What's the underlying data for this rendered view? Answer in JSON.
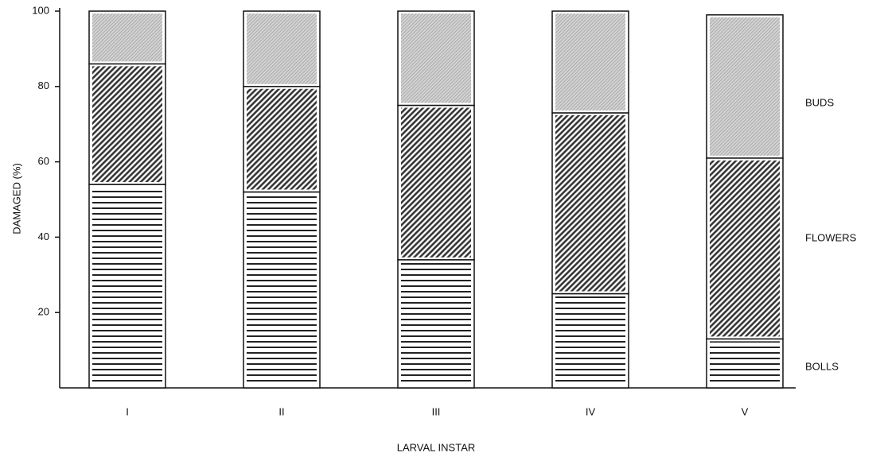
{
  "chart_data": {
    "type": "stacked_bar",
    "xlabel": "LARVAL INSTAR",
    "ylabel": "DAMAGED (%)",
    "categories": [
      "I",
      "II",
      "III",
      "IV",
      "V"
    ],
    "series": [
      {
        "name": "BOLLS",
        "color": "#222222",
        "pattern": "horizontal",
        "values": [
          54,
          52,
          34,
          25,
          13
        ]
      },
      {
        "name": "FLOWERS",
        "color": "#333333",
        "pattern": "diagonal",
        "values": [
          32,
          28,
          41,
          48,
          48
        ]
      },
      {
        "name": "BUDS",
        "color": "#bdbdbd",
        "pattern": "dots",
        "values": [
          14,
          20,
          25,
          27,
          38
        ]
      }
    ],
    "ylim": [
      0,
      100
    ],
    "yticks": [
      20,
      40,
      60,
      80,
      100
    ],
    "grid": false
  }
}
